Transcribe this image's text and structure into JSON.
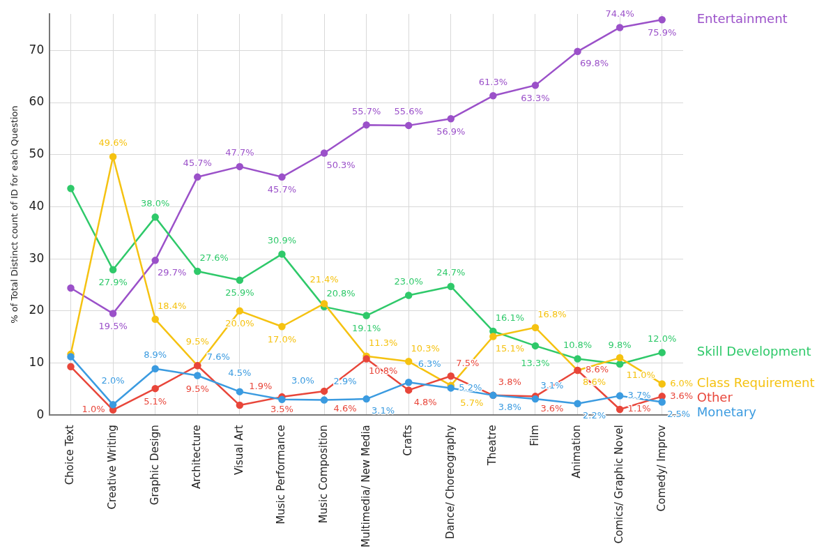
{
  "chart_data": {
    "type": "line",
    "ylabel": "% of Total Distinct count of ID for each Question",
    "categories": [
      "Choice Text",
      "Creative Writing",
      "Graphic Design",
      "Architecture",
      "Visual Art",
      "Music Performance",
      "Music Composition",
      "Multimedia/ New Media",
      "Crafts",
      "Dance/ Choreography",
      "Theatre",
      "Film",
      "Animation",
      "Comics/ Graphic Novel",
      "Comedy/ Improv"
    ],
    "series": [
      {
        "name": "Entertainment",
        "color": "#9b51c9",
        "values": [
          24.4,
          19.5,
          29.7,
          45.7,
          47.7,
          45.7,
          50.3,
          55.7,
          55.6,
          56.9,
          61.3,
          63.3,
          69.8,
          74.4,
          75.9
        ],
        "value_labels": [
          null,
          "19.5%",
          "29.7%",
          "45.7%",
          "47.7%",
          "45.7%",
          "50.3%",
          "55.7%",
          "55.6%",
          "56.9%",
          "61.3%",
          "63.3%",
          "69.8%",
          "74.4%",
          "75.9%"
        ]
      },
      {
        "name": "Skill Development",
        "color": "#2fc96a",
        "values": [
          43.5,
          27.9,
          38.0,
          27.6,
          25.9,
          30.9,
          20.8,
          19.1,
          23.0,
          24.7,
          16.1,
          13.3,
          10.8,
          9.8,
          12.0
        ],
        "value_labels": [
          null,
          "27.9%",
          "38.0%",
          "27.6%",
          "25.9%",
          "30.9%",
          "20.8%",
          "19.1%",
          "23.0%",
          "24.7%",
          "16.1%",
          "13.3%",
          "10.8%",
          "9.8%",
          "12.0%"
        ]
      },
      {
        "name": "Class Requirement",
        "color": "#f5c211",
        "values": [
          11.7,
          49.6,
          18.4,
          9.5,
          20.0,
          17.0,
          21.4,
          11.3,
          10.3,
          5.7,
          15.1,
          16.8,
          8.6,
          11.0,
          6.0
        ],
        "value_labels": [
          null,
          "49.6%",
          "18.4%",
          "9.5%",
          "20.0%",
          "17.0%",
          "21.4%",
          "11.3%",
          "10.3%",
          "5.7%",
          "15.1%",
          "16.8%",
          "8.6%",
          "11.0%",
          "6.0%"
        ]
      },
      {
        "name": "Other",
        "color": "#e8463a",
        "values": [
          9.3,
          1.0,
          5.1,
          9.5,
          1.9,
          3.5,
          4.6,
          10.8,
          4.8,
          7.5,
          3.8,
          3.6,
          8.6,
          1.1,
          3.6
        ],
        "value_labels": [
          null,
          "1.0%",
          "5.1%",
          "9.5%",
          "1.9%",
          "3.5%",
          "4.6%",
          "10.8%",
          "4.8%",
          "7.5%",
          "3.8%",
          "3.6%",
          "8.6%",
          "1.1%",
          "3.6%"
        ]
      },
      {
        "name": "Monetary",
        "color": "#3b9be0",
        "values": [
          11.2,
          2.0,
          8.9,
          7.6,
          4.5,
          3.0,
          2.9,
          3.1,
          6.3,
          5.2,
          3.8,
          3.1,
          2.2,
          3.7,
          2.5
        ],
        "value_labels": [
          null,
          "2.0%",
          "8.9%",
          "7.6%",
          "4.5%",
          "3.0%",
          "2.9%",
          "3.1%",
          "6.3%",
          "5.2%",
          "3.8%",
          "3.1%",
          "2.2%",
          "3.7%",
          "2.5%"
        ]
      }
    ],
    "ylim": [
      0,
      77
    ],
    "yticks": [
      0,
      10,
      20,
      30,
      40,
      50,
      60,
      70
    ],
    "grid": true,
    "legend": false,
    "marker": "circle",
    "line_style": "solid"
  }
}
